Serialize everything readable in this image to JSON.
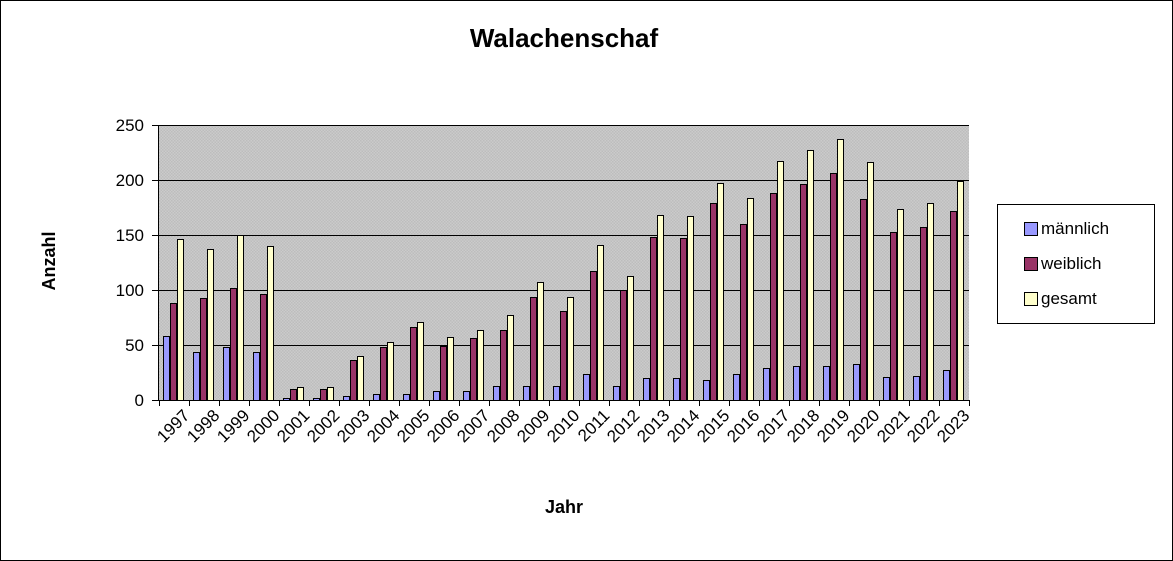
{
  "title": "Walachenschaf",
  "x_axis_label": "Jahr",
  "y_axis_label": "Anzahl",
  "chart_data": {
    "type": "bar",
    "title": "Walachenschaf",
    "xlabel": "Jahr",
    "ylabel": "Anzahl",
    "ylim": [
      0,
      250
    ],
    "yticks": [
      0,
      50,
      100,
      150,
      200,
      250
    ],
    "grid": true,
    "legend_position": "right",
    "plot_bg": "#c0c0c0",
    "axis_color": "#000000",
    "categories": [
      "1997",
      "1998",
      "1999",
      "2000",
      "2001",
      "2002",
      "2003",
      "2004",
      "2005",
      "2006",
      "2007",
      "2008",
      "2009",
      "2010",
      "2011",
      "2012",
      "2013",
      "2014",
      "2015",
      "2016",
      "2017",
      "2018",
      "2019",
      "2020",
      "2021",
      "2022",
      "2023"
    ],
    "series": [
      {
        "name": "männlich",
        "color": "#9999ff",
        "values": [
          58,
          44,
          48,
          44,
          2,
          2,
          4,
          5,
          5,
          8,
          8,
          13,
          13,
          13,
          24,
          13,
          20,
          20,
          18,
          24,
          29,
          31,
          31,
          33,
          21,
          22,
          27
        ]
      },
      {
        "name": "weiblich",
        "color": "#993366",
        "values": [
          88,
          93,
          102,
          96,
          10,
          10,
          36,
          48,
          66,
          49,
          56,
          64,
          94,
          81,
          117,
          100,
          148,
          147,
          179,
          160,
          188,
          196,
          206,
          183,
          153,
          157,
          172
        ]
      },
      {
        "name": "gesamt",
        "color": "#ffffcc",
        "values": [
          146,
          137,
          150,
          140,
          12,
          12,
          40,
          53,
          71,
          57,
          64,
          77,
          107,
          94,
          141,
          113,
          168,
          167,
          197,
          184,
          217,
          227,
          237,
          216,
          174,
          179,
          199
        ]
      }
    ]
  }
}
